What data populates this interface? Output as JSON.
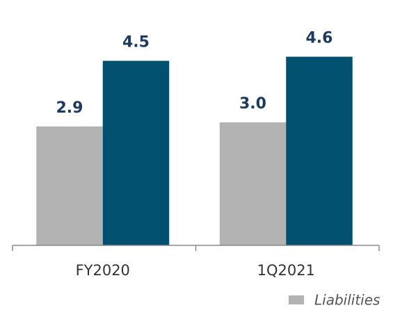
{
  "chart_data": {
    "type": "bar",
    "categories": [
      "FY2020",
      "1Q2021"
    ],
    "series": [
      {
        "name": "Liabilities",
        "color": "#b3b3b3",
        "values": [
          2.9,
          3.0
        ],
        "value_labels": [
          "2.9",
          "3.0"
        ]
      },
      {
        "color": "#02506f",
        "values": [
          4.5,
          4.6
        ]
      }
    ]
  }
}
